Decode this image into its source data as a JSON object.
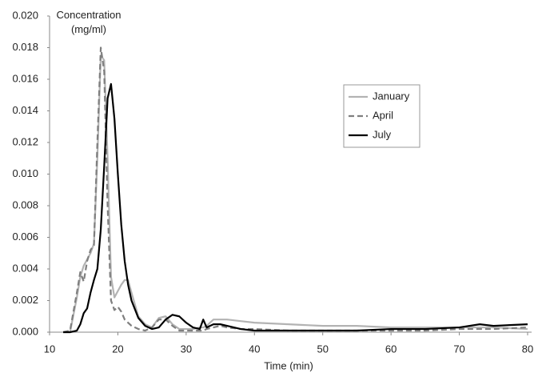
{
  "chart_data": {
    "type": "line",
    "y_label": "Concentration (mg/ml)",
    "x_label": "Time (min)",
    "x": [
      12,
      13,
      14,
      14.5,
      15,
      15.5,
      16,
      16.5,
      17,
      17.5,
      18,
      18.5,
      19,
      19.5,
      20,
      20.5,
      21,
      21.5,
      22,
      23,
      24,
      25,
      26,
      27,
      28,
      29,
      30,
      31,
      32,
      32.5,
      33,
      34,
      35,
      36,
      38,
      40,
      45,
      50,
      55,
      60,
      65,
      70,
      73,
      75,
      80
    ],
    "series": [
      {
        "name": "January",
        "color": "#b3b3b3",
        "line_style": "solid",
        "values": [
          0,
          0,
          0.0022,
          0.0035,
          0.0042,
          0.0046,
          0.005,
          0.0056,
          0.011,
          0.0175,
          0.0172,
          0.011,
          0.0035,
          0.0022,
          0.0026,
          0.003,
          0.0033,
          0.0033,
          0.0025,
          0.001,
          0.0005,
          0.0003,
          0.0009,
          0.001,
          0.0005,
          0.0002,
          0.0002,
          0.0002,
          0.0003,
          0.0003,
          0.0004,
          0.0008,
          0.0008,
          0.0008,
          0.0007,
          0.0006,
          0.0005,
          0.0004,
          0.0004,
          0.0003,
          0.0003,
          0.0003,
          0.0003,
          0.0003,
          0.0002
        ]
      },
      {
        "name": "April",
        "color": "#7f7f7f",
        "line_style": "dashed",
        "values": [
          0,
          0.0001,
          0.0025,
          0.0038,
          0.0032,
          0.0045,
          0.0052,
          0.0055,
          0.012,
          0.018,
          0.0165,
          0.008,
          0.002,
          0.0014,
          0.0016,
          0.0013,
          0.0008,
          0.0006,
          0.0004,
          0.0002,
          0.0001,
          0.0003,
          0.0008,
          0.0008,
          0.0004,
          0.0001,
          0.0001,
          0.0001,
          0.0001,
          0.0001,
          0.0002,
          0.0003,
          0.0004,
          0.0003,
          0.0002,
          0.0002,
          0.0001,
          0.0001,
          0.0001,
          0.0001,
          0.0001,
          0.0002,
          0.0002,
          0.0002,
          0.0003
        ]
      },
      {
        "name": "July",
        "color": "#000000",
        "line_style": "solid",
        "values": [
          0,
          0,
          0.0001,
          0.0005,
          0.0012,
          0.0015,
          0.0025,
          0.0033,
          0.004,
          0.0065,
          0.0105,
          0.0148,
          0.0157,
          0.0135,
          0.01,
          0.0068,
          0.0045,
          0.003,
          0.002,
          0.0009,
          0.0004,
          0.0002,
          0.0003,
          0.0008,
          0.0011,
          0.001,
          0.0006,
          0.0003,
          0.0002,
          0.0008,
          0.0003,
          0.0005,
          0.0005,
          0.0004,
          0.0002,
          0.0001,
          0.0001,
          0.0001,
          0.0001,
          0.0002,
          0.0002,
          0.0003,
          0.0005,
          0.0004,
          0.0005
        ]
      }
    ],
    "xlim": [
      10,
      80
    ],
    "xticks": [
      10,
      20,
      30,
      40,
      50,
      60,
      70,
      80
    ],
    "ylim": [
      0,
      0.02
    ],
    "yticks": [
      {
        "value": 0,
        "label": "0.000"
      },
      0.002,
      0.004,
      0.006,
      0.008,
      {
        "value": 0.01,
        "label": "0.010"
      },
      0.012,
      0.014,
      0.016,
      0.018,
      {
        "value": 0.02,
        "label": "0.020"
      }
    ],
    "grid": false,
    "legend_position": "center right"
  }
}
